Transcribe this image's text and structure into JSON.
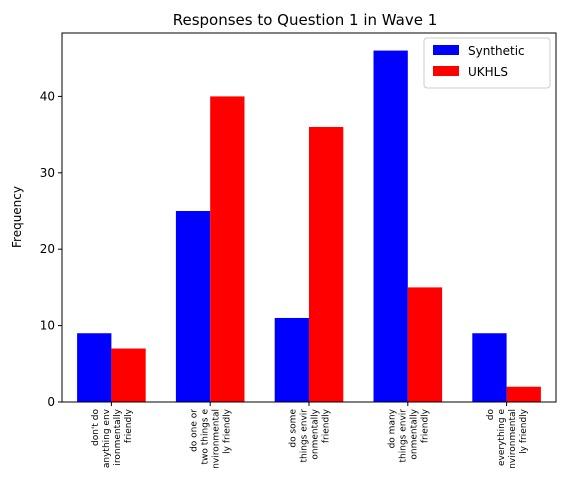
{
  "chart_data": {
    "type": "bar",
    "title": "Responses to Question 1 in Wave 1",
    "xlabel": "",
    "ylabel": "Frequency",
    "ylim": [
      0,
      48.3
    ],
    "yticks": [
      "0",
      "10",
      "20",
      "30",
      "40"
    ],
    "grid": false,
    "legend_position": "top-right",
    "categories": [
      [
        "don't do",
        "anything env",
        "ironmentally",
        "friendly"
      ],
      [
        "do one or",
        "two things e",
        "nvironmental",
        "ly friendly"
      ],
      [
        "do some",
        "things envir",
        "onmentally",
        "friendly"
      ],
      [
        "do many",
        "things envir",
        "onmentally",
        "friendly"
      ],
      [
        "do",
        "everything e",
        "nvironmental",
        "ly friendly"
      ]
    ],
    "series": [
      {
        "name": "Synthetic",
        "color": "#0000ff",
        "values": [
          9,
          25,
          11,
          46,
          9
        ]
      },
      {
        "name": "UKHLS",
        "color": "#ff0000",
        "values": [
          7,
          40,
          36,
          15,
          2
        ]
      }
    ]
  }
}
